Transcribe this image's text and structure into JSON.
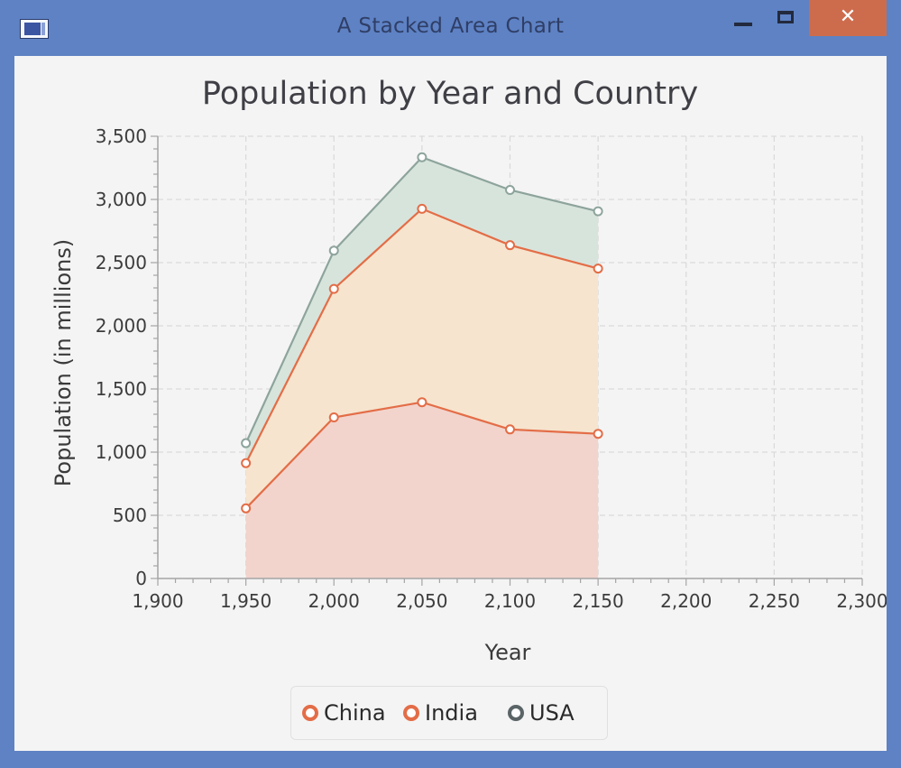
{
  "window": {
    "title": "A Stacked Area Chart",
    "close_glyph": "✕"
  },
  "chart_data": {
    "type": "area",
    "stacked": true,
    "title": "Population by Year and Country",
    "xlabel": "Year",
    "ylabel": "Population (in millions)",
    "xlim": [
      1900,
      2300
    ],
    "ylim": [
      0,
      3500
    ],
    "x_ticks": [
      "1,900",
      "1,950",
      "2,000",
      "2,050",
      "2,100",
      "2,150",
      "2,200",
      "2,250",
      "2,300"
    ],
    "y_ticks": [
      "0",
      "500",
      "1,000",
      "1,500",
      "2,000",
      "2,500",
      "3,000",
      "3,500"
    ],
    "x": [
      1950,
      2000,
      2050,
      2100,
      2150
    ],
    "series": [
      {
        "name": "China",
        "values": [
          555,
          1275,
          1395,
          1180,
          1145
        ],
        "line_color": "#e36d47",
        "fill_color": "#f2d4cc"
      },
      {
        "name": "India",
        "values": [
          358,
          1017,
          1531,
          1458,
          1308
        ],
        "line_color": "#e36d47",
        "fill_color": "#f6e4ce"
      },
      {
        "name": "USA",
        "values": [
          158,
          303,
          408,
          437,
          453
        ],
        "line_color": "#8da49c",
        "fill_color": "#d7e4dc"
      }
    ],
    "grid": true,
    "legend_position": "bottom-center"
  },
  "legend": {
    "items": [
      {
        "label": "China",
        "color": "#e36d47"
      },
      {
        "label": "India",
        "color": "#e36d47"
      },
      {
        "label": "USA",
        "color": "#5a6466"
      }
    ]
  },
  "icons": {
    "app": "app-window-icon",
    "minimize": "minimize-icon",
    "maximize": "maximize-icon",
    "close": "close-icon"
  }
}
